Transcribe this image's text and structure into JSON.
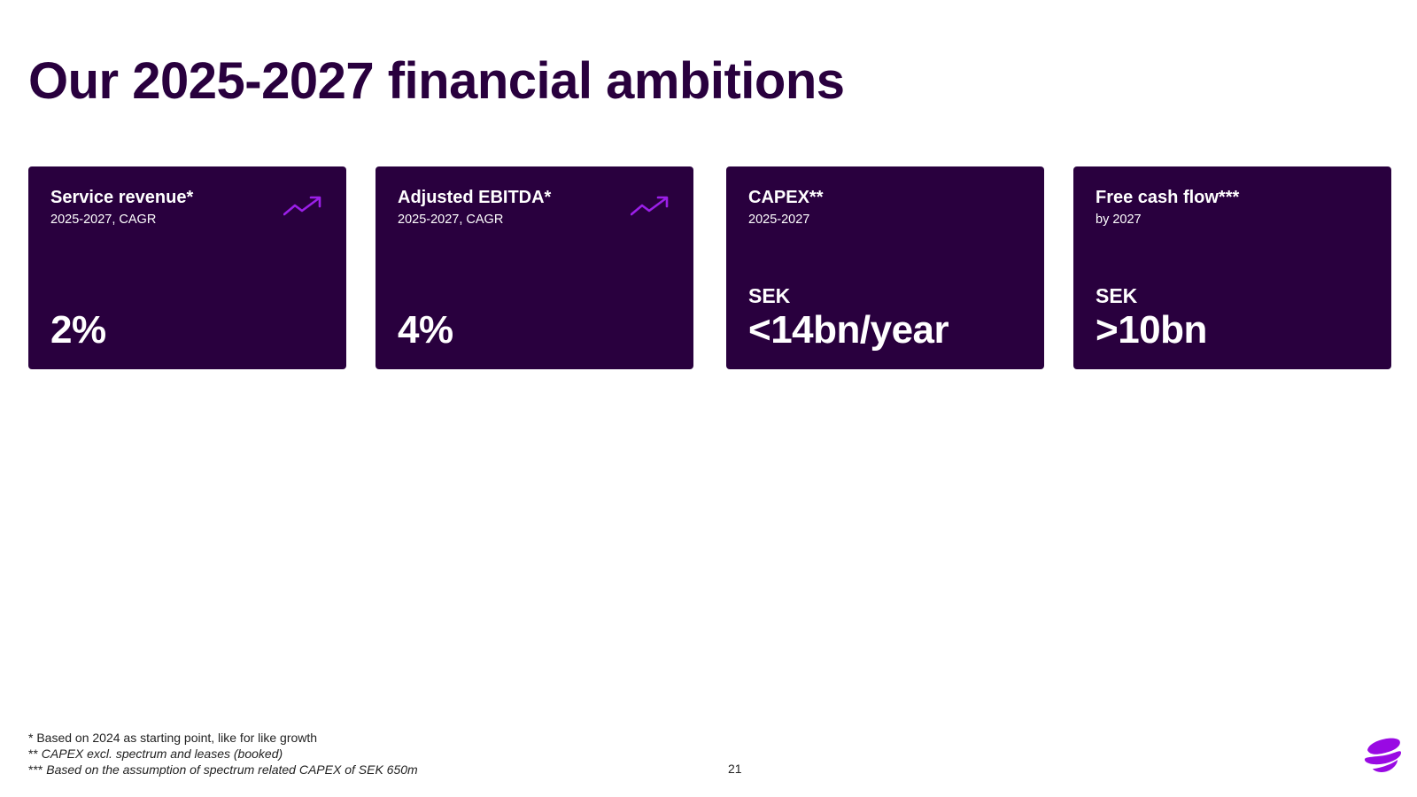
{
  "title": "Our 2025-2027 financial ambitions",
  "cards": [
    {
      "title": "Service revenue*",
      "subtitle": "2025-2027, CAGR",
      "unit": "",
      "value": "2%",
      "trend_icon": "trend-up-icon"
    },
    {
      "title": "Adjusted EBITDA*",
      "subtitle": "2025-2027, CAGR",
      "unit": "",
      "value": "4%",
      "trend_icon": "trend-up-icon"
    },
    {
      "title": "CAPEX**",
      "subtitle": "2025-2027",
      "unit": "SEK",
      "value": "<14bn/year"
    },
    {
      "title": "Free cash flow***",
      "subtitle": "by 2027",
      "unit": "SEK",
      "value": ">10bn"
    }
  ],
  "footnotes": [
    {
      "marker": "*",
      "text": "Based on 2024 as starting point, like for like growth"
    },
    {
      "marker": "**",
      "text": "CAPEX excl. spectrum and leases (booked)"
    },
    {
      "marker": "***",
      "text": "Based on the assumption of spectrum related CAPEX of SEK 650m"
    }
  ],
  "page_number": "21",
  "logo_icon": "telia-logo-icon",
  "colors": {
    "brand_dark": "#29003e",
    "accent_purple": "#9b1fe8",
    "card_text": "#ffffff"
  }
}
